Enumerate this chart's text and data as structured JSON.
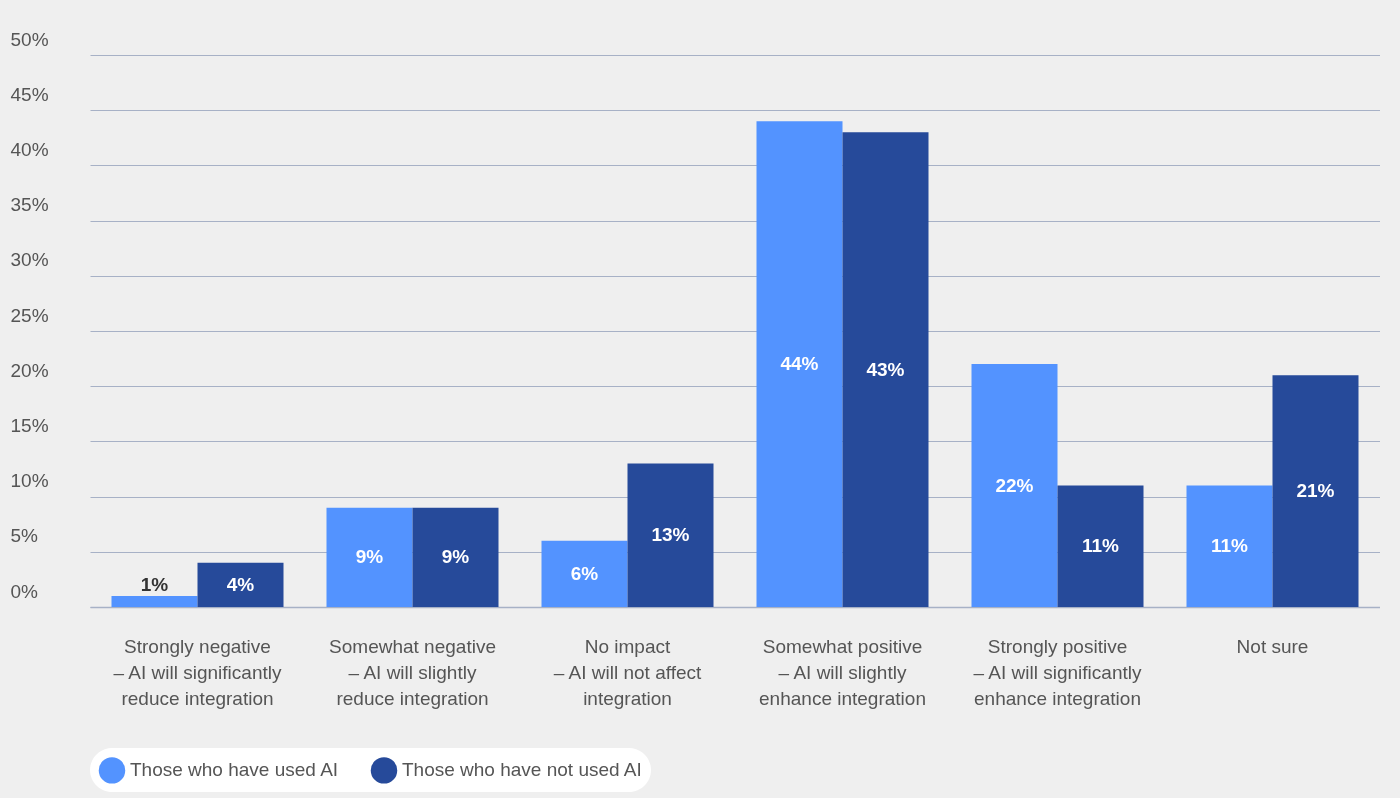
{
  "chart_data": {
    "type": "bar",
    "categories": [
      "Strongly negative\n– AI will significantly\nreduce integration",
      "Somewhat negative\n– AI will slightly\nreduce integration",
      "No impact\n– AI will not affect\nintegration",
      "Somewhat positive\n– AI will slightly\nenhance integration",
      "Strongly positive\n– AI will significantly\nenhance integration",
      "Not sure"
    ],
    "series": [
      {
        "name": "Those who have used AI",
        "color": "#5393ff",
        "values": [
          1,
          9,
          6,
          44,
          22,
          11
        ],
        "value_labels": [
          "1%",
          "9%",
          "6%",
          "44%",
          "22%",
          "11%"
        ]
      },
      {
        "name": "Those who have not used AI",
        "color": "#264a9a",
        "values": [
          4,
          9,
          13,
          43,
          11,
          21
        ],
        "value_labels": [
          "4%",
          "9%",
          "13%",
          "43%",
          "11%",
          "21%"
        ]
      }
    ],
    "ylim": [
      0,
      50
    ],
    "yticks": [
      {
        "value": 0,
        "label": "0%"
      },
      {
        "value": 5,
        "label": "5%"
      },
      {
        "value": 10,
        "label": "10%"
      },
      {
        "value": 15,
        "label": "15%"
      },
      {
        "value": 20,
        "label": "20%"
      },
      {
        "value": 25,
        "label": "25%"
      },
      {
        "value": 30,
        "label": "30%"
      },
      {
        "value": 35,
        "label": "35%"
      },
      {
        "value": 40,
        "label": "40%"
      },
      {
        "value": 45,
        "label": "45%"
      },
      {
        "value": 50,
        "label": "50%"
      }
    ],
    "grid": "y",
    "legend": "bottom"
  }
}
